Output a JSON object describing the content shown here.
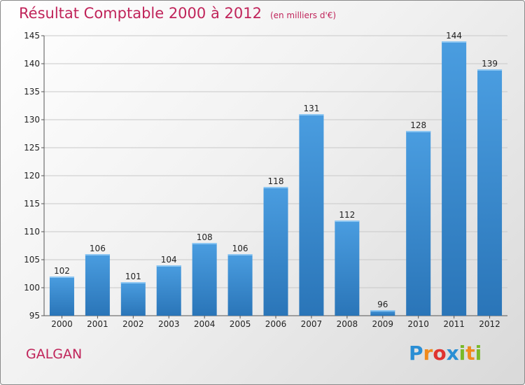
{
  "title": "Résultat Comptable 2000 à 2012",
  "subtitle": "(en milliers d'€)",
  "commune": "GALGAN",
  "logo": {
    "letters": [
      "P",
      "r",
      "o",
      "x",
      "i",
      "t",
      "i"
    ],
    "colors": [
      "#2a8ed4",
      "#f08a1c",
      "#e0332f",
      "#2a8ed4",
      "#7ab929",
      "#f08a1c",
      "#7ab929"
    ]
  },
  "colors": {
    "bar": "#4a9de0",
    "bar_dark": "#2a75b8",
    "title": "#c0245a"
  },
  "chart_data": {
    "type": "bar",
    "categories": [
      "2000",
      "2001",
      "2002",
      "2003",
      "2004",
      "2005",
      "2006",
      "2007",
      "2008",
      "2009",
      "2010",
      "2011",
      "2012"
    ],
    "values": [
      102,
      106,
      101,
      104,
      108,
      106,
      118,
      131,
      112,
      96,
      128,
      144,
      139
    ],
    "title": "Résultat Comptable 2000 à 2012",
    "subtitle": "(en milliers d'€)",
    "ylim": [
      95,
      145
    ],
    "yticks": [
      95,
      100,
      105,
      110,
      115,
      120,
      125,
      130,
      135,
      140,
      145
    ],
    "grid": true,
    "legend": "none"
  }
}
